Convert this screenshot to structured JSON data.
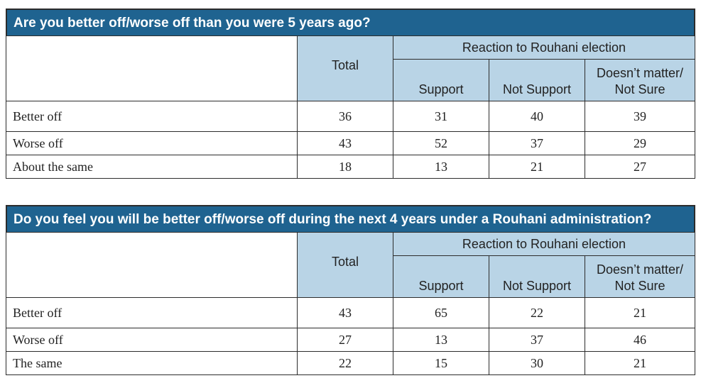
{
  "tables": [
    {
      "title": "Are you better off/worse off than you were 5 years ago?",
      "header": {
        "total": "Total",
        "group": "Reaction to Rouhani election",
        "support": "Support",
        "not_support": "Not Support",
        "doesnt_matter_l1": "Doesn’t matter/",
        "doesnt_matter_l2": "Not Sure"
      },
      "rows": [
        {
          "label": "Better off",
          "total": "36",
          "support": "31",
          "not_support": "40",
          "doesnt_matter": "39"
        },
        {
          "label": "Worse off",
          "total": "43",
          "support": "52",
          "not_support": "37",
          "doesnt_matter": "29"
        },
        {
          "label": "About the same",
          "total": "18",
          "support": "13",
          "not_support": "21",
          "doesnt_matter": "27"
        }
      ]
    },
    {
      "title": "Do you feel you will be better off/worse off during the next 4 years under a Rouhani administration?",
      "header": {
        "total": "Total",
        "group": "Reaction to Rouhani election",
        "support": "Support",
        "not_support": "Not Support",
        "doesnt_matter_l1": "Doesn’t matter/",
        "doesnt_matter_l2": "Not Sure"
      },
      "rows": [
        {
          "label": "Better off",
          "total": "43",
          "support": "65",
          "not_support": "22",
          "doesnt_matter": "21"
        },
        {
          "label": "Worse off",
          "total": "27",
          "support": "13",
          "not_support": "37",
          "doesnt_matter": "46"
        },
        {
          "label": "The same",
          "total": "22",
          "support": "15",
          "not_support": "30",
          "doesnt_matter": "21"
        }
      ]
    }
  ]
}
